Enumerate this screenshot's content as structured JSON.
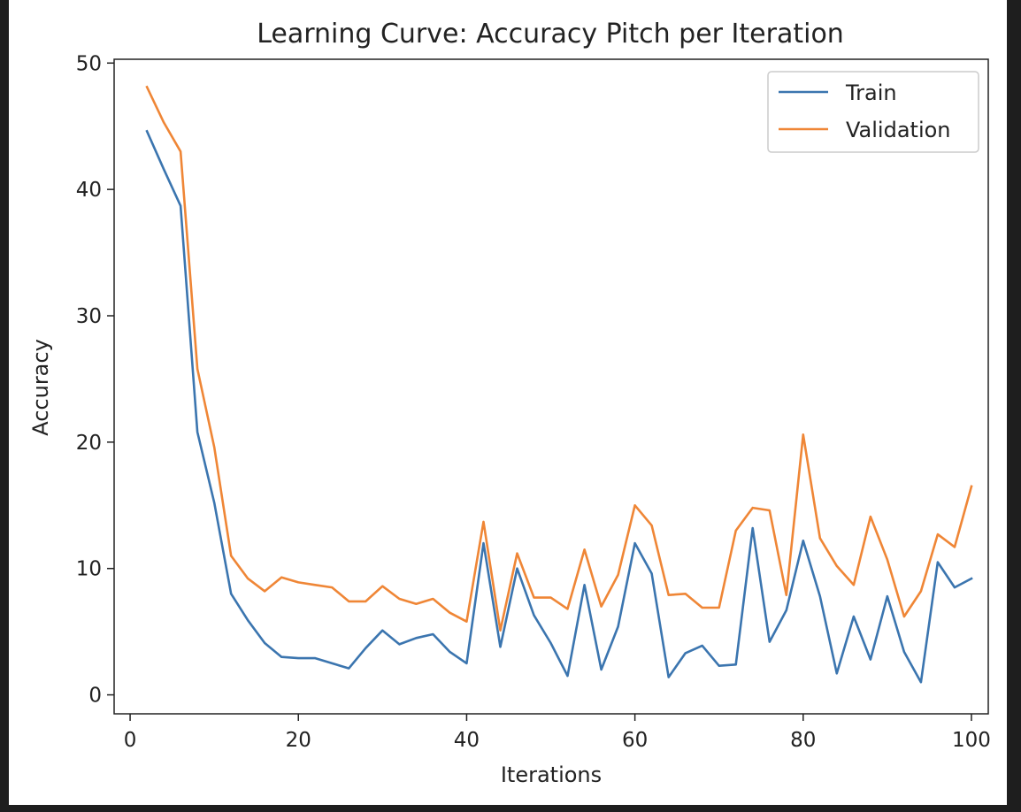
{
  "chart_data": {
    "type": "line",
    "title": "Learning Curve: Accuracy Pitch per Iteration",
    "xlabel": "Iterations",
    "ylabel": "Accuracy",
    "xlim": [
      -1.9,
      102
    ],
    "ylim": [
      -1.5,
      50.3
    ],
    "xticks": [
      0,
      20,
      40,
      60,
      80,
      100
    ],
    "yticks": [
      0,
      10,
      20,
      30,
      40,
      50
    ],
    "grid": false,
    "legend_position": "top-right",
    "x": [
      2,
      4,
      6,
      8,
      10,
      12,
      14,
      16,
      18,
      20,
      22,
      24,
      26,
      28,
      30,
      32,
      34,
      36,
      38,
      40,
      42,
      44,
      46,
      48,
      50,
      52,
      54,
      56,
      58,
      60,
      62,
      64,
      66,
      68,
      70,
      72,
      74,
      76,
      78,
      80,
      82,
      84,
      86,
      88,
      90,
      92,
      94,
      96,
      98,
      100
    ],
    "series": [
      {
        "name": "Train",
        "color": "#3b75af",
        "values": [
          44.6,
          41.6,
          38.7,
          20.8,
          15.2,
          8.0,
          5.9,
          4.1,
          3.0,
          2.9,
          2.9,
          2.5,
          2.1,
          3.7,
          5.1,
          4.0,
          4.5,
          4.8,
          3.4,
          2.5,
          12.0,
          3.8,
          10.0,
          6.3,
          4.1,
          1.5,
          8.7,
          2.0,
          5.4,
          12.0,
          9.6,
          1.4,
          3.3,
          3.9,
          2.3,
          2.4,
          13.2,
          4.2,
          6.7,
          12.2,
          7.8,
          1.7,
          6.2,
          2.8,
          7.8,
          3.4,
          1.0,
          10.5,
          8.5,
          9.2
        ]
      },
      {
        "name": "Validation",
        "color": "#ef8636",
        "values": [
          48.1,
          45.3,
          43.0,
          25.8,
          19.6,
          11.0,
          9.2,
          8.2,
          9.3,
          8.9,
          8.7,
          8.5,
          7.4,
          7.4,
          8.6,
          7.6,
          7.2,
          7.6,
          6.5,
          5.8,
          13.7,
          5.1,
          11.2,
          7.7,
          7.7,
          6.8,
          11.5,
          7.0,
          9.5,
          15.0,
          13.4,
          7.9,
          8.0,
          6.9,
          6.9,
          13.0,
          14.8,
          14.6,
          7.9,
          20.6,
          12.4,
          10.2,
          8.7,
          14.1,
          10.7,
          6.2,
          8.2,
          12.7,
          11.7,
          16.5
        ]
      }
    ]
  }
}
